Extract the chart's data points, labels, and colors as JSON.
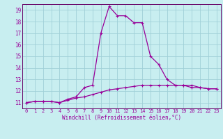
{
  "xlabel": "Windchill (Refroidissement éolien,°C)",
  "bg_color": "#c8eef0",
  "grid_color": "#a0d0d8",
  "line_color": "#990099",
  "spine_color": "#660066",
  "xlim": [
    -0.5,
    23.5
  ],
  "ylim": [
    10.5,
    19.5
  ],
  "yticks": [
    11,
    12,
    13,
    14,
    15,
    16,
    17,
    18,
    19
  ],
  "xticks": [
    0,
    1,
    2,
    3,
    4,
    5,
    6,
    7,
    8,
    9,
    10,
    11,
    12,
    13,
    14,
    15,
    16,
    17,
    18,
    19,
    20,
    21,
    22,
    23
  ],
  "hours": [
    0,
    1,
    2,
    3,
    4,
    5,
    6,
    7,
    8,
    9,
    10,
    11,
    12,
    13,
    14,
    15,
    16,
    17,
    18,
    19,
    20,
    21,
    22,
    23
  ],
  "temp_line1": [
    11.0,
    11.1,
    11.1,
    11.1,
    11.0,
    11.3,
    11.5,
    12.3,
    12.5,
    17.0,
    19.3,
    18.5,
    18.5,
    17.9,
    17.9,
    15.0,
    14.3,
    13.0,
    12.5,
    12.5,
    12.3,
    12.3,
    12.2,
    12.2
  ],
  "temp_line2": [
    11.0,
    11.1,
    11.1,
    11.1,
    11.0,
    11.2,
    11.4,
    11.5,
    11.7,
    11.9,
    12.1,
    12.2,
    12.3,
    12.4,
    12.5,
    12.5,
    12.5,
    12.5,
    12.5,
    12.5,
    12.5,
    12.3,
    12.2,
    12.2
  ]
}
